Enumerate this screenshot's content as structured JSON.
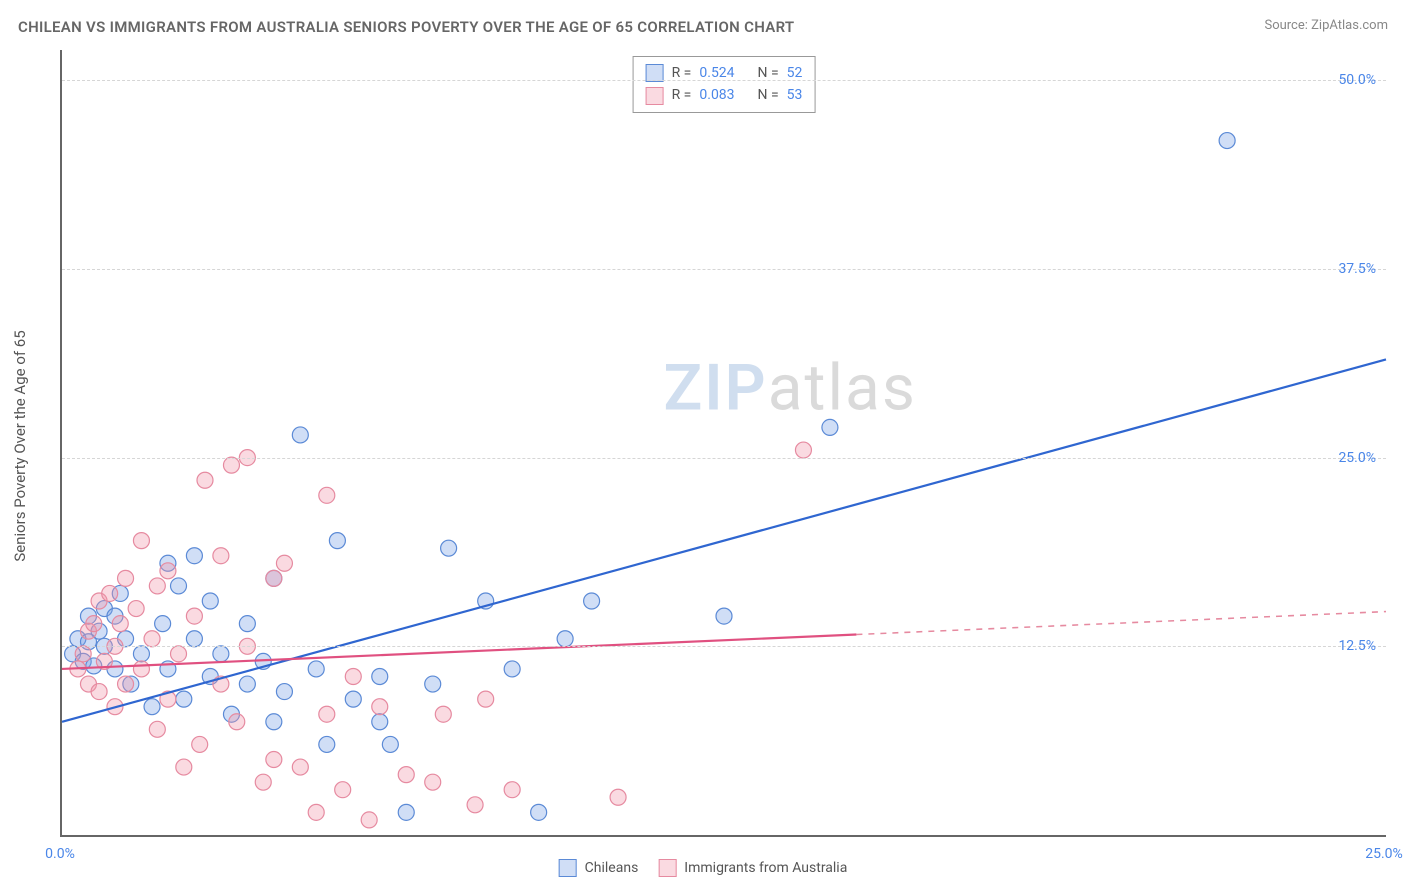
{
  "title": "CHILEAN VS IMMIGRANTS FROM AUSTRALIA SENIORS POVERTY OVER THE AGE OF 65 CORRELATION CHART",
  "source": "Source: ZipAtlas.com",
  "y_axis_label": "Seniors Poverty Over the Age of 65",
  "watermark_zip": "ZIP",
  "watermark_atlas": "atlas",
  "chart": {
    "type": "scatter",
    "background_color": "#ffffff",
    "grid_color": "#d6d6d6",
    "axis_color": "#666666",
    "xlim": [
      0,
      25
    ],
    "ylim": [
      0,
      52
    ],
    "y_ticks": [
      12.5,
      25.0,
      37.5,
      50.0
    ],
    "y_tick_labels": [
      "12.5%",
      "25.0%",
      "37.5%",
      "50.0%"
    ],
    "x_ticks": [
      0,
      25
    ],
    "x_tick_labels": [
      "0.0%",
      "25.0%"
    ],
    "tick_label_color": "#4a86e8",
    "tick_label_fontsize": 14,
    "title_fontsize": 15,
    "title_color": "#666666",
    "axis_label_fontsize": 15,
    "axis_label_color": "#555555",
    "marker_radius": 8,
    "marker_stroke_width": 1.2,
    "trendline_width": 2.2
  },
  "series": [
    {
      "name": "Chileans",
      "fill_color": "rgba(120,160,230,0.35)",
      "stroke_color": "#5b8ad6",
      "line_color": "#2f66d0",
      "line_dashed_color": "#2f66d0",
      "R": "0.524",
      "N": "52",
      "trendline": {
        "x1": 0,
        "y1": 7.5,
        "x2": 25,
        "y2": 31.5
      },
      "trendline_solid_end_x": 25,
      "points": [
        [
          0.2,
          12.0
        ],
        [
          0.3,
          13.0
        ],
        [
          0.4,
          11.5
        ],
        [
          0.5,
          12.8
        ],
        [
          0.5,
          14.5
        ],
        [
          0.6,
          11.2
        ],
        [
          0.7,
          13.5
        ],
        [
          0.8,
          12.5
        ],
        [
          0.8,
          15.0
        ],
        [
          1.0,
          14.5
        ],
        [
          1.0,
          11.0
        ],
        [
          1.1,
          16.0
        ],
        [
          1.2,
          13.0
        ],
        [
          1.3,
          10.0
        ],
        [
          1.5,
          12.0
        ],
        [
          1.7,
          8.5
        ],
        [
          1.9,
          14.0
        ],
        [
          2.0,
          11.0
        ],
        [
          2.0,
          18.0
        ],
        [
          2.2,
          16.5
        ],
        [
          2.3,
          9.0
        ],
        [
          2.5,
          13.0
        ],
        [
          2.5,
          18.5
        ],
        [
          2.8,
          10.5
        ],
        [
          2.8,
          15.5
        ],
        [
          3.0,
          12.0
        ],
        [
          3.2,
          8.0
        ],
        [
          3.5,
          14.0
        ],
        [
          3.5,
          10.0
        ],
        [
          3.8,
          11.5
        ],
        [
          4.0,
          17.0
        ],
        [
          4.0,
          7.5
        ],
        [
          4.2,
          9.5
        ],
        [
          4.5,
          26.5
        ],
        [
          4.8,
          11.0
        ],
        [
          5.0,
          6.0
        ],
        [
          5.2,
          19.5
        ],
        [
          5.5,
          9.0
        ],
        [
          6.0,
          7.5
        ],
        [
          6.0,
          10.5
        ],
        [
          6.2,
          6.0
        ],
        [
          6.5,
          1.5
        ],
        [
          7.0,
          10.0
        ],
        [
          7.3,
          19.0
        ],
        [
          8.0,
          15.5
        ],
        [
          8.5,
          11.0
        ],
        [
          9.0,
          1.5
        ],
        [
          9.5,
          13.0
        ],
        [
          10.0,
          15.5
        ],
        [
          12.5,
          14.5
        ],
        [
          14.5,
          27.0
        ],
        [
          22.0,
          46.0
        ]
      ]
    },
    {
      "name": "Immigrants from Australia",
      "fill_color": "rgba(240,150,170,0.35)",
      "stroke_color": "#e68aa0",
      "line_color": "#e05080",
      "line_dashed_color": "#e68aa0",
      "R": "0.083",
      "N": "53",
      "trendline": {
        "x1": 0,
        "y1": 11.0,
        "x2": 25,
        "y2": 14.8
      },
      "trendline_solid_end_x": 15,
      "points": [
        [
          0.3,
          11.0
        ],
        [
          0.4,
          12.0
        ],
        [
          0.5,
          13.5
        ],
        [
          0.5,
          10.0
        ],
        [
          0.6,
          14.0
        ],
        [
          0.7,
          15.5
        ],
        [
          0.7,
          9.5
        ],
        [
          0.8,
          11.5
        ],
        [
          0.9,
          16.0
        ],
        [
          1.0,
          12.5
        ],
        [
          1.0,
          8.5
        ],
        [
          1.1,
          14.0
        ],
        [
          1.2,
          17.0
        ],
        [
          1.2,
          10.0
        ],
        [
          1.4,
          15.0
        ],
        [
          1.5,
          19.5
        ],
        [
          1.5,
          11.0
        ],
        [
          1.7,
          13.0
        ],
        [
          1.8,
          16.5
        ],
        [
          1.8,
          7.0
        ],
        [
          2.0,
          17.5
        ],
        [
          2.0,
          9.0
        ],
        [
          2.2,
          12.0
        ],
        [
          2.3,
          4.5
        ],
        [
          2.5,
          14.5
        ],
        [
          2.6,
          6.0
        ],
        [
          2.7,
          23.5
        ],
        [
          3.0,
          10.0
        ],
        [
          3.0,
          18.5
        ],
        [
          3.2,
          24.5
        ],
        [
          3.3,
          7.5
        ],
        [
          3.5,
          25.0
        ],
        [
          3.5,
          12.5
        ],
        [
          3.8,
          3.5
        ],
        [
          4.0,
          17.0
        ],
        [
          4.0,
          5.0
        ],
        [
          4.2,
          18.0
        ],
        [
          4.5,
          4.5
        ],
        [
          4.8,
          1.5
        ],
        [
          5.0,
          22.5
        ],
        [
          5.0,
          8.0
        ],
        [
          5.3,
          3.0
        ],
        [
          5.5,
          10.5
        ],
        [
          5.8,
          1.0
        ],
        [
          6.0,
          8.5
        ],
        [
          6.5,
          4.0
        ],
        [
          7.0,
          3.5
        ],
        [
          7.2,
          8.0
        ],
        [
          7.8,
          2.0
        ],
        [
          8.0,
          9.0
        ],
        [
          8.5,
          3.0
        ],
        [
          10.5,
          2.5
        ],
        [
          14.0,
          25.5
        ]
      ]
    }
  ],
  "legend_top": {
    "R_label": "R =",
    "N_label": "N ="
  },
  "legend_bottom": {
    "items": [
      "Chileans",
      "Immigrants from Australia"
    ]
  }
}
